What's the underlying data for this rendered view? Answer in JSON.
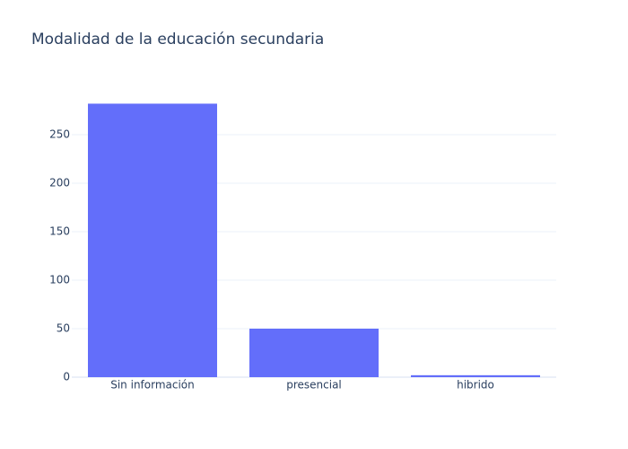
{
  "chart_data": {
    "type": "bar",
    "title": "Modalidad de la educación secundaria",
    "categories": [
      "Sin información",
      "presencial",
      "hibrido"
    ],
    "values": [
      282,
      50,
      2
    ],
    "color": "#636efa",
    "ylim": [
      0,
      296.3
    ],
    "yticks": [
      0,
      50,
      100,
      150,
      200,
      250
    ],
    "grid": true
  }
}
